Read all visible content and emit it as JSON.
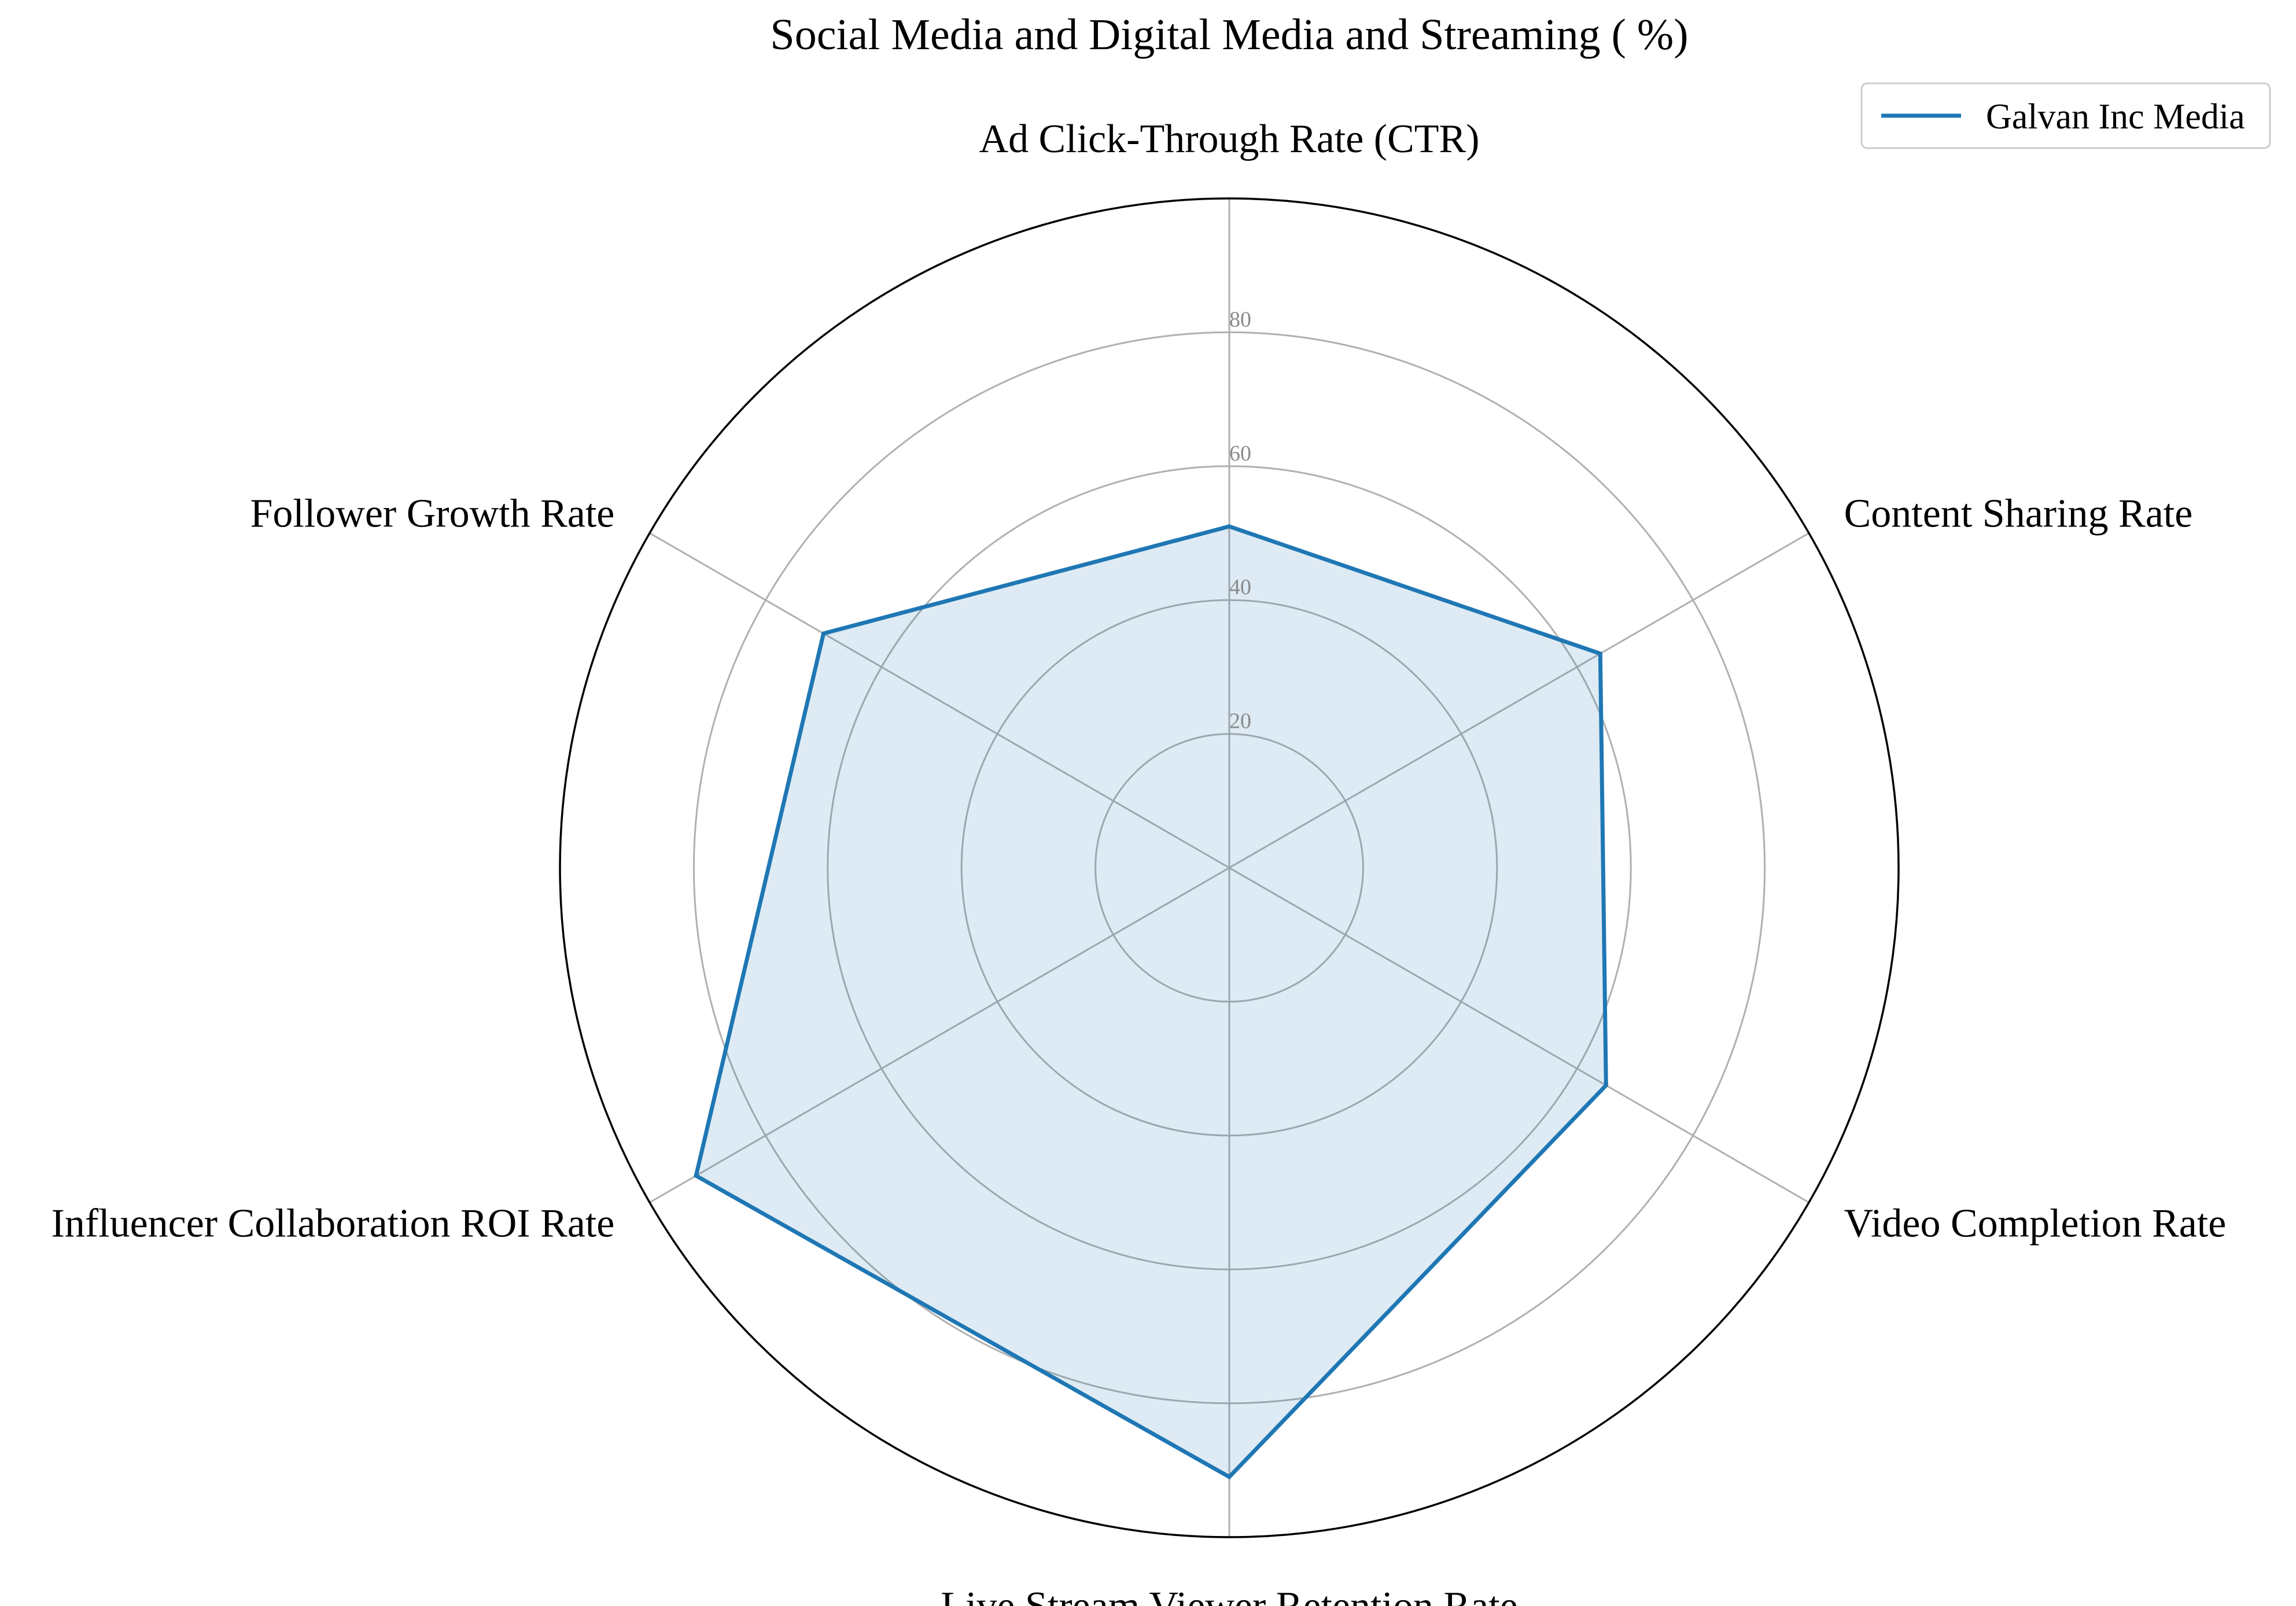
{
  "chart_data": {
    "type": "radar",
    "title": "Social Media and Digital Media and Streaming ( %)",
    "categories": [
      "Ad Click-Through Rate (CTR)",
      "Content Sharing Rate",
      "Video Completion Rate",
      "Live Stream Viewer Retention Rate",
      "Influencer Collaboration ROI Rate",
      "Follower Growth Rate"
    ],
    "series": [
      {
        "name": "Galvan Inc Media",
        "values": [
          51,
          64,
          65,
          91,
          92,
          70
        ],
        "color": "#1f77b4",
        "fill_opacity": 0.15
      }
    ],
    "rlim": [
      0,
      100
    ],
    "radial_ticks": [
      "20",
      "40",
      "60",
      "80"
    ],
    "radial_tick_values": [
      20,
      40,
      60,
      80
    ],
    "grid": true,
    "legend_position": "top-right"
  },
  "colors": {
    "series": "#1f77b4",
    "grid": "#b0b0b0",
    "frame": "#000000"
  }
}
